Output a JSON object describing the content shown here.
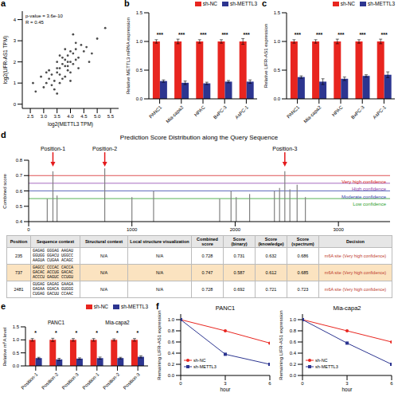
{
  "chart_data": [
    {
      "panel": "a",
      "type": "scatter",
      "x_label": "log2(METTL3 TPM)",
      "y_label": "log2(LIFR-AS1 TPM)",
      "annotations": [
        "p-value = 3.6e-10",
        "R = 0.45"
      ],
      "color": "#4d4d4d",
      "x": [
        3.2,
        3.5,
        3.8,
        4.0,
        3.6,
        3.9,
        4.2,
        3.3,
        3.7,
        4.1,
        3.4,
        3.0,
        2.9,
        3.1,
        3.8,
        4.3,
        4.5,
        3.6,
        3.9,
        4.0,
        3.5,
        3.2,
        4.4,
        3.7,
        4.1,
        4.6,
        3.3,
        3.8,
        4.2,
        3.9,
        3.6,
        4.0,
        2.7,
        3.5,
        4.8,
        5.0,
        3.4,
        3.7,
        4.3,
        3.1,
        3.9,
        4.1,
        3.6,
        4.7,
        2.6,
        5.3,
        3.8,
        4.2,
        3.5,
        4.0
      ],
      "values": [
        1.2,
        1.5,
        1.8,
        2.0,
        1.4,
        2.3,
        2.1,
        0.9,
        1.9,
        2.4,
        1.1,
        0.8,
        1.3,
        1.0,
        2.6,
        2.2,
        2.5,
        1.7,
        1.6,
        1.5,
        2.0,
        1.6,
        2.8,
        1.2,
        1.9,
        2.7,
        1.4,
        2.1,
        2.9,
        1.8,
        1.0,
        2.5,
        0.6,
        1.7,
        2.4,
        3.1,
        0.7,
        2.2,
        1.7,
        1.5,
        2.0,
        3.3,
        2.3,
        2.0,
        1.0,
        3.6,
        1.3,
        2.6,
        0.5,
        1.1
      ],
      "xlim": [
        2.2,
        5.8
      ],
      "xticks": [
        2.5,
        {
          "value": 3,
          "label": "3.0"
        },
        3.5,
        {
          "value": 4,
          "label": "4.0"
        },
        4.5,
        {
          "value": 5,
          "label": "5.0"
        },
        5.5
      ],
      "ylim": [
        -0.2,
        4.4
      ],
      "yticks": [
        0,
        1,
        2,
        3,
        4
      ]
    },
    {
      "panel": "b",
      "type": "bar",
      "y_label": "Relative METTL3 mRNA expression",
      "categories": [
        "PANC1",
        "Mia-capa2",
        "HPAC",
        "BxPC-3",
        "AsPC-1"
      ],
      "series": [
        {
          "name": "sh-NC",
          "color": "#e8251f",
          "values": [
            1,
            1,
            1,
            1,
            1
          ],
          "errors": [
            0.03,
            0.04,
            0.03,
            0.03,
            0.05
          ]
        },
        {
          "name": "sh-METTL3",
          "color": "#2c3590",
          "values": [
            0.31,
            0.28,
            0.27,
            0.3,
            0.3
          ],
          "errors": [
            0.02,
            0.03,
            0.02,
            0.02,
            0.03
          ]
        }
      ],
      "significance": [
        "***",
        "***",
        "***",
        "***",
        "***"
      ],
      "legend": "top",
      "ylim": [
        0,
        1.5
      ],
      "yticks": [
        {
          "value": 0,
          "label": "0.0"
        },
        0.5,
        {
          "value": 1,
          "label": "1.0"
        },
        1.5
      ]
    },
    {
      "panel": "c",
      "type": "bar",
      "y_label": "Relative LIFR-AS1 expression",
      "categories": [
        "PANC1",
        "Mia-capa2",
        "HPAC",
        "BxPC-3",
        "AsPC-1"
      ],
      "series": [
        {
          "name": "sh-NC",
          "color": "#e8251f",
          "values": [
            1,
            1,
            1,
            1,
            1
          ],
          "errors": [
            0.03,
            0.03,
            0.04,
            0.03,
            0.04
          ]
        },
        {
          "name": "sh-METTL3",
          "color": "#2c3590",
          "values": [
            0.38,
            0.3,
            0.35,
            0.4,
            0.42
          ],
          "errors": [
            0.02,
            0.05,
            0.03,
            0.02,
            0.05
          ]
        }
      ],
      "significance": [
        "***",
        "***",
        "***",
        "***",
        "***"
      ],
      "legend": "top",
      "ylim": [
        0,
        1.5
      ],
      "yticks": [
        {
          "value": 0,
          "label": "0.0"
        },
        0.5,
        {
          "value": 1,
          "label": "1.0"
        },
        1.5
      ]
    },
    {
      "panel": "d",
      "type": "stem",
      "title": "Prediction Score Distribution along the Query Sequence",
      "y_label": "Combined score",
      "color": "#808080",
      "x": [
        180,
        235,
        275,
        737,
        1000,
        1210,
        1850,
        1960,
        2010,
        2140,
        2380,
        2430,
        2481,
        2530,
        2600,
        2680
      ],
      "values": [
        0.55,
        0.728,
        0.57,
        0.747,
        0.56,
        0.6,
        0.55,
        0.6,
        0.56,
        0.58,
        0.6,
        0.62,
        0.728,
        0.61,
        0.64,
        0.56
      ],
      "xlim": [
        0,
        3500
      ],
      "xticks": [
        0,
        1000,
        2000,
        3000
      ],
      "ylim": [
        0.4,
        0.8
      ],
      "yticks": [
        0.4,
        0.5,
        0.6,
        0.7,
        0.8
      ],
      "thresholds": [
        {
          "label": "Very high confidence",
          "value": 0.7,
          "color": "#d62728"
        },
        {
          "label": "High confidence",
          "value": 0.65,
          "color": "#8e44ad"
        },
        {
          "label": "Moderate confidence",
          "value": 0.6,
          "color": "#3949ab"
        },
        {
          "label": "Low confidence",
          "value": 0.55,
          "color": "#2ca02c"
        }
      ],
      "highlights": [
        {
          "label": "Position-1",
          "x": 235,
          "color": "#e41a1c"
        },
        {
          "label": "Position-2",
          "x": 737,
          "color": "#e41a1c"
        },
        {
          "label": "Position-3",
          "x": 2481,
          "color": "#e41a1c"
        }
      ]
    },
    {
      "panel": "e",
      "type": "bar",
      "y_label": "Relative m⁶A level",
      "categories": [
        "Position-1",
        "Position-2",
        "Position-3",
        "Position-1",
        "Position-2",
        "Position-3"
      ],
      "group_labels": [
        "PANC1",
        "Mia-capa2"
      ],
      "series": [
        {
          "name": "sh-NC",
          "color": "#e8251f",
          "values": [
            1,
            1,
            1,
            1,
            1,
            1
          ],
          "errors": [
            0.05,
            0.06,
            0.05,
            0.05,
            0.04,
            0.05
          ]
        },
        {
          "name": "sh-METTL3",
          "color": "#2c3590",
          "values": [
            0.3,
            0.25,
            0.28,
            0.3,
            0.3,
            0.35
          ],
          "errors": [
            0.03,
            0.04,
            0.03,
            0.04,
            0.03,
            0.04
          ]
        }
      ],
      "significance": [
        "*",
        "*",
        "*",
        "*",
        "*",
        "*"
      ],
      "legend": "top",
      "ylim": [
        0,
        1.5
      ],
      "yticks": [
        {
          "value": 0,
          "label": "0.0"
        },
        0.5,
        {
          "value": 1,
          "label": "1.0"
        },
        1.5
      ]
    },
    {
      "panel": "f",
      "type": "line",
      "title": "PANC1",
      "x_label": "hour",
      "y_label": "Remaining LIFR-AS1 expression",
      "x": [
        0,
        3,
        6
      ],
      "series": [
        {
          "name": "sh-NC",
          "color": "#e8251f",
          "marker": "circle",
          "values": [
            1,
            0.8,
            0.58
          ]
        },
        {
          "name": "sh-METTL3",
          "color": "#2c3590",
          "marker": "square",
          "values": [
            1,
            0.38,
            0.2
          ]
        }
      ],
      "legend": "lower left",
      "xlim": [
        0,
        6
      ],
      "xticks": [
        0,
        3,
        6
      ],
      "ylim": [
        0,
        1.1
      ],
      "yticks": [
        {
          "value": 0,
          "label": "0.0"
        },
        0.2,
        0.4,
        0.6,
        0.8,
        {
          "value": 1,
          "label": "1.0"
        }
      ]
    },
    {
      "type": "line",
      "title": "Mia-capa2",
      "x_label": "hour",
      "y_label": "Remaining LIFR-AS1 expression",
      "x": [
        0,
        3,
        6
      ],
      "series": [
        {
          "name": "sh-NC",
          "color": "#e8251f",
          "marker": "circle",
          "values": [
            1,
            0.8,
            0.6
          ]
        },
        {
          "name": "sh-METTL3",
          "color": "#2c3590",
          "marker": "square",
          "values": [
            1,
            0.58,
            0.2
          ]
        }
      ],
      "legend": "lower left",
      "xlim": [
        0,
        6
      ],
      "xticks": [
        0,
        3,
        6
      ],
      "ylim": [
        0,
        1.1
      ],
      "yticks": [
        {
          "value": 0,
          "label": "0.0"
        },
        0.2,
        0.4,
        0.6,
        0.8,
        {
          "value": 1,
          "label": "1.0"
        }
      ]
    }
  ],
  "table": {
    "header": [
      "Position",
      "Sequence context",
      "Structural context",
      "Local structure visualization",
      "Combined score",
      "Score (binary)",
      "Score (knowledge)",
      "Score (spectrum)",
      "Decision"
    ],
    "rows": [
      [
        235,
        "GAGAG GGGAG AAGAU GGUGG GGACU UGGCC AAGUA CUGAA ACAGC",
        "N/A",
        "N/A",
        0.728,
        0.731,
        0.632,
        0.686,
        "m6A site (Very high confidence)"
      ],
      [
        737,
        "GAGCC CCCAC CACCA GACAC ACCUG GACAC ACCCU GAGUC CCUGU",
        "N/A",
        "N/A",
        0.747,
        0.587,
        0.612,
        0.685,
        "m6A site (Very high confidence)"
      ],
      [
        2481,
        "GUGAG GAGAG GAAGA GAGAA GGACA GUGGG CUGAG GACUU CCAAC",
        "N/A",
        "N/A",
        0.728,
        0.692,
        0.721,
        0.723,
        "m6A site (Very high confidence)"
      ]
    ]
  }
}
